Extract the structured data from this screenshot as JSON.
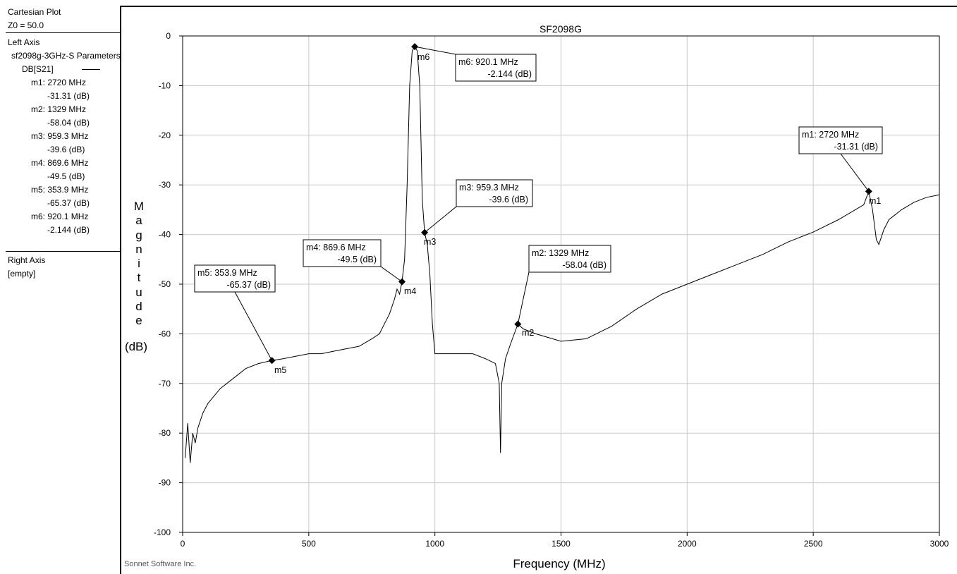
{
  "sidebar": {
    "header": {
      "title": "Cartesian Plot",
      "z0": "Z0 = 50.0"
    },
    "left_axis": {
      "heading": "Left Axis",
      "file": "sf2098g-3GHz-S Parameters",
      "trace": "DB[S21]",
      "markers": [
        {
          "name": "m1:",
          "freq": "2720 MHz",
          "val": "-31.31  (dB)"
        },
        {
          "name": "m2:",
          "freq": "1329 MHz",
          "val": "-58.04  (dB)"
        },
        {
          "name": "m3:",
          "freq": "959.3 MHz",
          "val": "-39.6  (dB)"
        },
        {
          "name": "m4:",
          "freq": "869.6 MHz",
          "val": "-49.5  (dB)"
        },
        {
          "name": "m5:",
          "freq": "353.9 MHz",
          "val": "-65.37  (dB)"
        },
        {
          "name": "m6:",
          "freq": "920.1 MHz",
          "val": "-2.144  (dB)"
        }
      ]
    },
    "right_axis": {
      "heading": "Right Axis",
      "value": "[empty]"
    }
  },
  "footer": {
    "credit": "Sonnet Software Inc."
  },
  "chart_data": {
    "type": "line",
    "title": "SF2098G",
    "xlabel": "Frequency (MHz)",
    "ylabel_letters": [
      "M",
      "a",
      "g",
      "n",
      "i",
      "t",
      "u",
      "d",
      "e"
    ],
    "ylabel_unit": "(dB)",
    "xlim": [
      0,
      3000
    ],
    "ylim": [
      -100,
      0
    ],
    "xticks": [
      0,
      500,
      1000,
      1500,
      2000,
      2500,
      3000
    ],
    "yticks": [
      0,
      -10,
      -20,
      -30,
      -40,
      -50,
      -60,
      -70,
      -80,
      -90,
      -100
    ],
    "grid": true,
    "series": [
      {
        "x": [
          10,
          20,
          30,
          40,
          50,
          60,
          80,
          100,
          150,
          200,
          250,
          300,
          353.9,
          400,
          450,
          500,
          550,
          600,
          650,
          700,
          750,
          780,
          800,
          820,
          840,
          850,
          860,
          869.6,
          880,
          890,
          900,
          910,
          920.1,
          930,
          940,
          950,
          959.3,
          970,
          980,
          990,
          1000,
          1020,
          1050,
          1100,
          1150,
          1200,
          1240,
          1255,
          1260,
          1265,
          1280,
          1300,
          1329,
          1350,
          1400,
          1500,
          1600,
          1700,
          1800,
          1900,
          2000,
          2100,
          2200,
          2300,
          2400,
          2500,
          2600,
          2700,
          2720,
          2735,
          2750,
          2760,
          2780,
          2800,
          2850,
          2900,
          2950,
          3000
        ],
        "y": [
          -85,
          -78,
          -86,
          -80,
          -82,
          -79,
          -76,
          -74,
          -71,
          -69,
          -67,
          -66,
          -65.37,
          -65,
          -64.5,
          -64,
          -64,
          -63.5,
          -63,
          -62.5,
          -61,
          -60,
          -58,
          -56,
          -53,
          -51,
          -52,
          -49.5,
          -45,
          -30,
          -10,
          -3,
          -2.144,
          -3,
          -10,
          -33,
          -39.6,
          -42,
          -48,
          -58,
          -64,
          -64,
          -64,
          -64,
          -64,
          -65,
          -66,
          -70,
          -84,
          -70,
          -65,
          -62,
          -58.04,
          -59,
          -60,
          -61.5,
          -61,
          -58.5,
          -55,
          -52,
          -50,
          -48,
          -46,
          -44,
          -41.5,
          -39.5,
          -37,
          -34,
          -31.31,
          -35,
          -41,
          -42,
          -39,
          -37,
          -35,
          -33.5,
          -32.5,
          -32
        ]
      }
    ],
    "markers": [
      {
        "id": "m1",
        "x": 2720,
        "y": -31.31,
        "line1": "m1:  2720 MHz",
        "line2": "-31.31  (dB)"
      },
      {
        "id": "m2",
        "x": 1329,
        "y": -58.04,
        "line1": "m2:  1329 MHz",
        "line2": "-58.04  (dB)"
      },
      {
        "id": "m3",
        "x": 959.3,
        "y": -39.6,
        "line1": "m3: 959.3 MHz",
        "line2": "-39.6  (dB)"
      },
      {
        "id": "m4",
        "x": 869.6,
        "y": -49.5,
        "line1": "m4: 869.6 MHz",
        "line2": "-49.5  (dB)"
      },
      {
        "id": "m5",
        "x": 353.9,
        "y": -65.37,
        "line1": "m5: 353.9 MHz",
        "line2": "-65.37  (dB)"
      },
      {
        "id": "m6",
        "x": 920.1,
        "y": -2.144,
        "line1": "m6: 920.1 MHz",
        "line2": "-2.144  (dB)"
      }
    ]
  }
}
